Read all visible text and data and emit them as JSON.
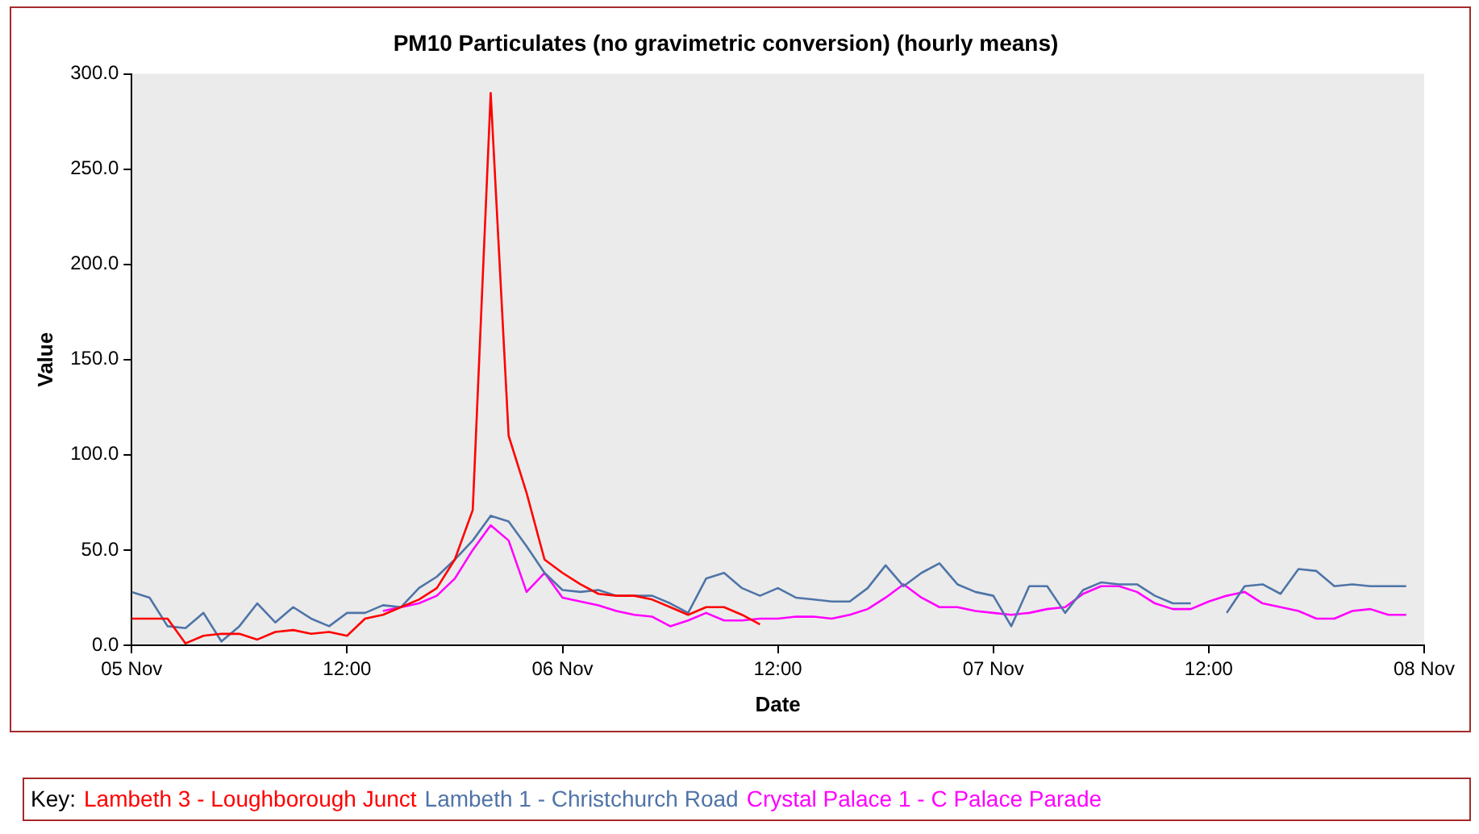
{
  "chart_data": {
    "type": "line",
    "title": "PM10 Particulates (no gravimetric conversion) (hourly means)",
    "xlabel": "Date",
    "ylabel": "Value",
    "legend_title": "Key:",
    "legend": "bottom",
    "grid": false,
    "marker": "none",
    "line_style": "solid",
    "xlim": [
      "--11-05T00:00",
      "--11-08T00:00"
    ],
    "xticks": [
      {
        "value": "--11-05T00:00",
        "label": "05 Nov"
      },
      {
        "value": "--11-05T12:00",
        "label": "12:00"
      },
      {
        "value": "--11-06T00:00",
        "label": "06 Nov"
      },
      {
        "value": "--11-06T12:00",
        "label": "12:00"
      },
      {
        "value": "--11-07T00:00",
        "label": "07 Nov"
      },
      {
        "value": "--11-07T12:00",
        "label": "12:00"
      },
      {
        "value": "--11-08T00:00",
        "label": "08 Nov"
      }
    ],
    "ylim": [
      0,
      300
    ],
    "yticks": [
      {
        "value": 0,
        "label": "0.0"
      },
      {
        "value": 50,
        "label": "50.0"
      },
      {
        "value": 100,
        "label": "100.0"
      },
      {
        "value": 150,
        "label": "150.0"
      },
      {
        "value": 200,
        "label": "200.0"
      },
      {
        "value": 250,
        "label": "250.0"
      },
      {
        "value": 300,
        "label": "300.0"
      }
    ],
    "series": [
      {
        "name": "Lambeth 3 - Loughborough Junct",
        "color": "#ff0000",
        "x": [
          "--11-05T00:00",
          "--11-05T01:00",
          "--11-05T02:00",
          "--11-05T03:00",
          "--11-05T04:00",
          "--11-05T05:00",
          "--11-05T06:00",
          "--11-05T07:00",
          "--11-05T08:00",
          "--11-05T09:00",
          "--11-05T10:00",
          "--11-05T11:00",
          "--11-05T12:00",
          "--11-05T13:00",
          "--11-05T14:00",
          "--11-05T15:00",
          "--11-05T16:00",
          "--11-05T17:00",
          "--11-05T18:00",
          "--11-05T19:00",
          "--11-05T20:00",
          "--11-05T21:00",
          "--11-05T22:00",
          "--11-05T23:00",
          "--11-06T00:00",
          "--11-06T01:00",
          "--11-06T02:00",
          "--11-06T03:00",
          "--11-06T04:00",
          "--11-06T05:00",
          "--11-06T06:00",
          "--11-06T07:00",
          "--11-06T08:00",
          "--11-06T09:00",
          "--11-06T10:00",
          "--11-06T11:00"
        ],
        "values": [
          14,
          14,
          14,
          1,
          5,
          6,
          6,
          3,
          7,
          8,
          6,
          7,
          5,
          14,
          16,
          20,
          24,
          30,
          45,
          71,
          290,
          110,
          80,
          45,
          38,
          32,
          27,
          26,
          26,
          24,
          20,
          16,
          20,
          20,
          16,
          11
        ]
      },
      {
        "name": "Lambeth 1 - Christchurch Road",
        "color": "#4f74a8",
        "x": [
          "--11-05T00:00",
          "--11-05T01:00",
          "--11-05T02:00",
          "--11-05T03:00",
          "--11-05T04:00",
          "--11-05T05:00",
          "--11-05T06:00",
          "--11-05T07:00",
          "--11-05T08:00",
          "--11-05T09:00",
          "--11-05T10:00",
          "--11-05T11:00",
          "--11-05T12:00",
          "--11-05T13:00",
          "--11-05T14:00",
          "--11-05T15:00",
          "--11-05T16:00",
          "--11-05T17:00",
          "--11-05T18:00",
          "--11-05T19:00",
          "--11-05T20:00",
          "--11-05T21:00",
          "--11-05T22:00",
          "--11-05T23:00",
          "--11-06T00:00",
          "--11-06T01:00",
          "--11-06T02:00",
          "--11-06T03:00",
          "--11-06T04:00",
          "--11-06T05:00",
          "--11-06T06:00",
          "--11-06T07:00",
          "--11-06T08:00",
          "--11-06T09:00",
          "--11-06T10:00",
          "--11-06T11:00",
          "--11-06T12:00",
          "--11-06T13:00",
          "--11-06T14:00",
          "--11-06T15:00",
          "--11-06T16:00",
          "--11-06T17:00",
          "--11-06T18:00",
          "--11-06T19:00",
          "--11-06T20:00",
          "--11-06T21:00",
          "--11-06T22:00",
          "--11-06T23:00",
          "--11-07T00:00",
          "--11-07T01:00",
          "--11-07T02:00",
          "--11-07T03:00",
          "--11-07T04:00",
          "--11-07T05:00",
          "--11-07T06:00",
          "--11-07T07:00",
          "--11-07T08:00",
          "--11-07T09:00",
          "--11-07T10:00",
          "--11-07T11:00",
          "--11-07T12:00",
          "--11-07T13:00",
          "--11-07T14:00",
          "--11-07T15:00",
          "--11-07T16:00",
          "--11-07T17:00",
          "--11-07T18:00",
          "--11-07T19:00",
          "--11-07T20:00",
          "--11-07T21:00",
          "--11-07T22:00",
          "--11-07T23:00"
        ],
        "values": [
          28,
          25,
          10,
          9,
          17,
          2,
          10,
          22,
          12,
          20,
          14,
          10,
          17,
          17,
          21,
          20,
          30,
          36,
          45,
          55,
          68,
          65,
          52,
          38,
          29,
          28,
          29,
          26,
          26,
          26,
          22,
          17,
          35,
          38,
          30,
          26,
          30,
          25,
          24,
          23,
          23,
          30,
          42,
          31,
          38,
          43,
          32,
          28,
          26,
          10,
          31,
          31,
          17,
          29,
          33,
          32,
          32,
          26,
          22,
          22,
          null,
          17,
          31,
          32,
          27,
          40,
          39,
          31,
          32,
          31,
          31,
          31
        ]
      },
      {
        "name": "Crystal Palace 1 - C Palace Parade",
        "color": "#ff00ff",
        "x": [
          "--11-05T14:00",
          "--11-05T15:00",
          "--11-05T16:00",
          "--11-05T17:00",
          "--11-05T18:00",
          "--11-05T19:00",
          "--11-05T20:00",
          "--11-05T21:00",
          "--11-05T22:00",
          "--11-05T23:00",
          "--11-06T00:00",
          "--11-06T01:00",
          "--11-06T02:00",
          "--11-06T03:00",
          "--11-06T04:00",
          "--11-06T05:00",
          "--11-06T06:00",
          "--11-06T07:00",
          "--11-06T08:00",
          "--11-06T09:00",
          "--11-06T10:00",
          "--11-06T11:00",
          "--11-06T12:00",
          "--11-06T13:00",
          "--11-06T14:00",
          "--11-06T15:00",
          "--11-06T16:00",
          "--11-06T17:00",
          "--11-06T18:00",
          "--11-06T19:00",
          "--11-06T20:00",
          "--11-06T21:00",
          "--11-06T22:00",
          "--11-06T23:00",
          "--11-07T00:00",
          "--11-07T01:00",
          "--11-07T02:00",
          "--11-07T03:00",
          "--11-07T04:00",
          "--11-07T05:00",
          "--11-07T06:00",
          "--11-07T07:00",
          "--11-07T08:00",
          "--11-07T09:00",
          "--11-07T10:00",
          "--11-07T11:00",
          "--11-07T12:00",
          "--11-07T13:00",
          "--11-07T14:00",
          "--11-07T15:00",
          "--11-07T16:00",
          "--11-07T17:00",
          "--11-07T18:00",
          "--11-07T19:00",
          "--11-07T20:00",
          "--11-07T21:00",
          "--11-07T22:00",
          "--11-07T23:00"
        ],
        "values": [
          18,
          20,
          22,
          26,
          35,
          50,
          63,
          55,
          28,
          38,
          25,
          23,
          21,
          18,
          16,
          15,
          10,
          13,
          17,
          13,
          13,
          14,
          14,
          15,
          15,
          14,
          16,
          19,
          25,
          32,
          25,
          20,
          20,
          18,
          17,
          16,
          17,
          19,
          20,
          27,
          31,
          31,
          28,
          22,
          19,
          19,
          23,
          26,
          28,
          22,
          20,
          18,
          14,
          14,
          18,
          19,
          16,
          16
        ]
      }
    ]
  }
}
